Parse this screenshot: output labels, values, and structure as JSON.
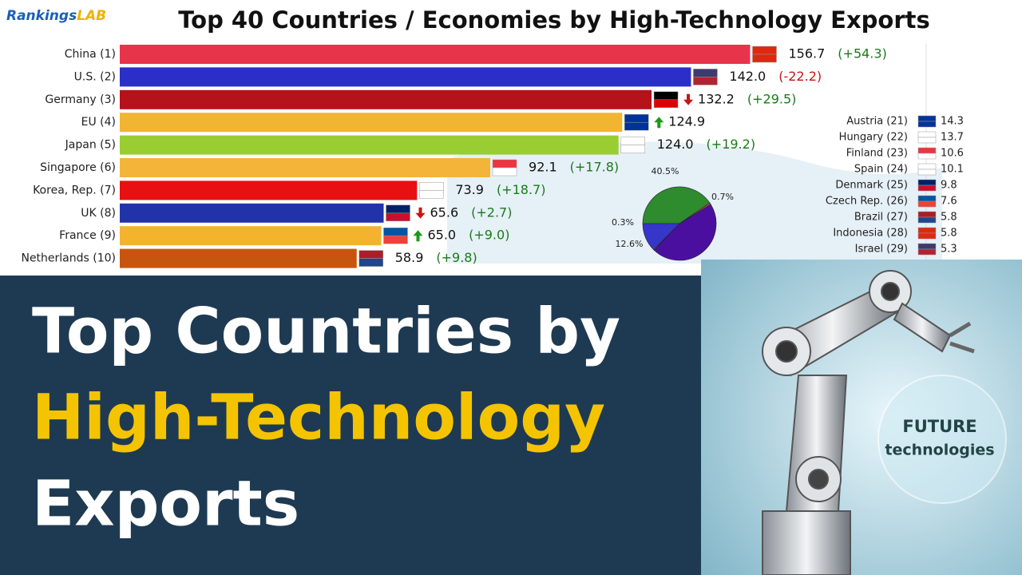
{
  "brand": {
    "part1": "Rankings",
    "part2": "LAB"
  },
  "chart_data": [
    {
      "type": "bar",
      "orientation": "horizontal",
      "title": "Top 40 Countries / Economies by High-Technology Exports",
      "categories": [
        "China (1)",
        "U.S. (2)",
        "Germany (3)",
        "EU (4)",
        "Japan (5)",
        "Singapore (6)",
        "Korea, Rep. (7)",
        "UK (8)",
        "France (9)",
        "Netherlands (10)"
      ],
      "values": [
        156.7,
        142.0,
        132.2,
        124.9,
        124.0,
        92.1,
        73.9,
        65.6,
        65.0,
        58.9
      ],
      "value_labels": [
        "156.7",
        "142.0",
        "132.2",
        "124.9",
        "124.0",
        "92.1",
        "73.9",
        "65.6",
        "65.0",
        "58.9"
      ],
      "change_labels": [
        "(+54.3)",
        "(-22.2)",
        "(+29.5)",
        null,
        "(+19.2)",
        "(+17.8)",
        "(+18.7)",
        "(+2.7)",
        "(+9.0)",
        "(+9.8)"
      ],
      "trend": [
        null,
        null,
        "down",
        "up",
        null,
        null,
        null,
        "down",
        "up",
        null
      ],
      "colors": [
        "#e8344a",
        "#2b2fc7",
        "#b5121b",
        "#f2b531",
        "#9acd32",
        "#f4b43a",
        "#e81010",
        "#2233aa",
        "#f4b32e",
        "#c8550f"
      ],
      "xlim": [
        0,
        157
      ]
    },
    {
      "type": "pie",
      "values": [
        40.5,
        0.7,
        45.9,
        0.3,
        12.6
      ],
      "value_labels": [
        "40.5%",
        "0.7%",
        null,
        "0.3%",
        "12.6%"
      ],
      "colors": [
        "#2e8b2e",
        "#d24a4a",
        "#4b0fa0",
        "#f0c020",
        "#3636c8"
      ]
    }
  ],
  "side_list": [
    {
      "name": "Austria (21)",
      "value": 14.3
    },
    {
      "name": "Hungary (22)",
      "value": 13.7
    },
    {
      "name": "Finland (23)",
      "value": 10.6
    },
    {
      "name": "Spain (24)",
      "value": 10.1
    },
    {
      "name": "Denmark (25)",
      "value": 9.8
    },
    {
      "name": "Czech Rep. (26)",
      "value": 7.6
    },
    {
      "name": "Brazil (27)",
      "value": 5.8
    },
    {
      "name": "Indonesia (28)",
      "value": 5.8
    },
    {
      "name": "Israel (29)",
      "value": 5.3
    }
  ],
  "headline": {
    "line1": "Top Countries by",
    "line2": "High-Technology",
    "line3": "Exports"
  },
  "badge": {
    "line1": "FUTURE",
    "line2": "technologies"
  }
}
